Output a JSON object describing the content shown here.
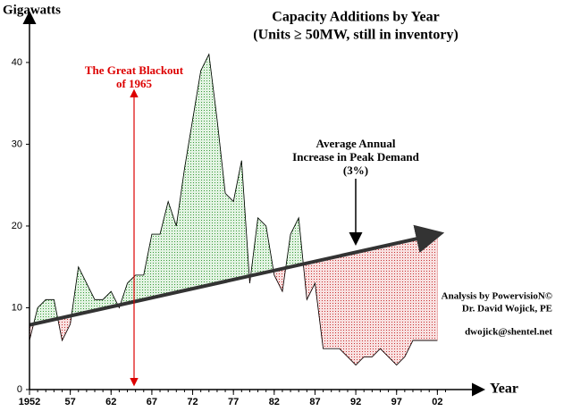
{
  "chart_data": {
    "type": "area",
    "title": "Capacity Additions by Year",
    "subtitle": "(Units ≥ 50MW, still in inventory)",
    "y_label": "Gigawatts",
    "x_label": "Year",
    "x": [
      1952,
      1953,
      1954,
      1955,
      1956,
      1957,
      1958,
      1959,
      1960,
      1961,
      1962,
      1963,
      1964,
      1965,
      1966,
      1967,
      1968,
      1969,
      1970,
      1971,
      1972,
      1973,
      1974,
      1975,
      1976,
      1977,
      1978,
      1979,
      1980,
      1981,
      1982,
      1983,
      1984,
      1985,
      1986,
      1987,
      1988,
      1989,
      1990,
      1991,
      1992,
      1993,
      1994,
      1995,
      1996,
      1997,
      1998,
      1999,
      2000,
      2001,
      2002
    ],
    "values": [
      6,
      10,
      11,
      11,
      6,
      8,
      15,
      13,
      11,
      11,
      12,
      10,
      13,
      14,
      14,
      19,
      19,
      23,
      20,
      27,
      33,
      39,
      41,
      33,
      24,
      23,
      28,
      13,
      21,
      20,
      14,
      12,
      19,
      21,
      11,
      13,
      5,
      5,
      5,
      4,
      3,
      4,
      4,
      5,
      4,
      3,
      4,
      6,
      6,
      6,
      6
    ],
    "color": "#000000",
    "above_color": "#2e8b2e",
    "below_color": "#c62828",
    "trend": {
      "x": [
        1952,
        2002
      ],
      "values": [
        7.9,
        19
      ],
      "color": "#333333"
    },
    "xlim": [
      1952,
      2007
    ],
    "ylim": [
      0,
      46
    ],
    "xticks": [
      1952,
      {
        "value": 1957,
        "label": "57"
      },
      {
        "value": 1962,
        "label": "62"
      },
      {
        "value": 1967,
        "label": "67"
      },
      {
        "value": 1972,
        "label": "72"
      },
      {
        "value": 1977,
        "label": "77"
      },
      {
        "value": 1982,
        "label": "82"
      },
      {
        "value": 1987,
        "label": "87"
      },
      {
        "value": 1992,
        "label": "92"
      },
      {
        "value": 1997,
        "label": "97"
      },
      {
        "value": 2002,
        "label": "02"
      }
    ],
    "yticks": [
      0,
      10,
      20,
      30,
      40
    ],
    "annotations": {
      "blackout": [
        "The Great Blackout",
        "of 1965"
      ],
      "trend_note": [
        "Average Annual",
        "Increase in Peak Demand",
        "(3%)"
      ],
      "credits": [
        "Analysis by PowervisioN©",
        "Dr. David Wojick, PE",
        "dwojick@shentel.net"
      ]
    }
  }
}
